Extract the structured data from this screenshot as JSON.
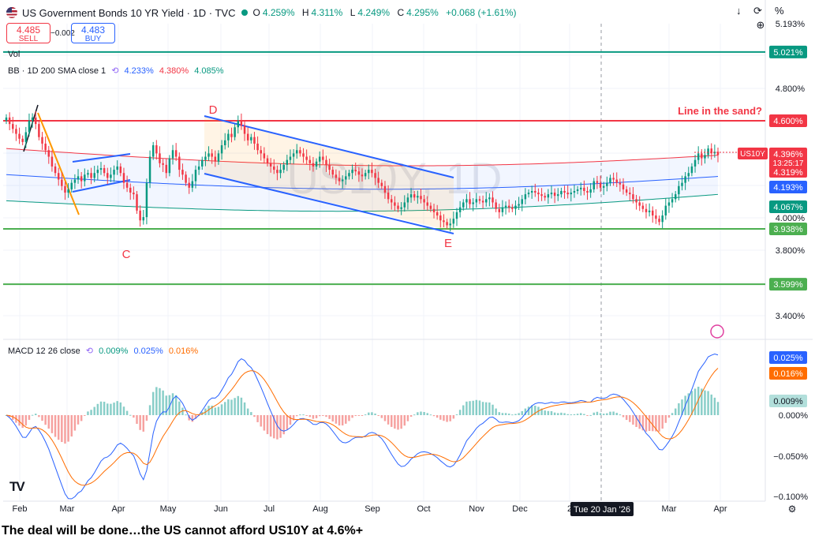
{
  "header": {
    "title": "US Government Bonds 10 YR Yield · 1D · TVC",
    "open_label": "O",
    "open": "4.259%",
    "high_label": "H",
    "high": "4.311%",
    "low_label": "L",
    "low": "4.249%",
    "close_label": "C",
    "close": "4.295%",
    "change": "+0.068 (+1.61%)"
  },
  "trade": {
    "sell_price": "4.485",
    "sell_label": "SELL",
    "spread": "−0.002",
    "buy_price": "4.483",
    "buy_label": "BUY"
  },
  "top_right_percent": "%",
  "vol_label": "Vol",
  "bb_legend": {
    "label": "BB · 1D 200 SMA close 1",
    "basis": "4.233%",
    "upper": "4.380%",
    "lower": "4.085%"
  },
  "macd_legend": {
    "label": "MACD 12 26 close",
    "hist": "0.009%",
    "macd": "0.025%",
    "signal": "0.016%"
  },
  "caption": "The deal will be done…the US cannot afford US10Y at 4.6%+",
  "colors": {
    "up": "#089981",
    "down": "#f23645",
    "macd": "#2962ff",
    "signal": "#ff6d00",
    "bb_basis": "#2962ff",
    "bb_upper": "#f23645",
    "bb_lower": "#089981",
    "level_red": "#f23645",
    "level_green": "#4caf50",
    "channel": "#2962ff",
    "wedge": "#ff9800"
  },
  "chart_data": {
    "type": "candlestick",
    "symbol": "US10Y",
    "watermark": "US10Y, 1D",
    "x_ticks": [
      "Feb",
      "Mar",
      "Apr",
      "May",
      "Jun",
      "Jul",
      "Aug",
      "Sep",
      "Oct",
      "Nov",
      "Dec",
      "2",
      "Mar",
      "Apr"
    ],
    "crosshair_date": "Tue 20 Jan '26",
    "price_ticks": [
      "4.800%",
      "4.000%",
      "3.800%",
      "3.400%"
    ],
    "hidden_tick": "5.193%",
    "price_range": [
      3.3,
      5.25
    ],
    "horizontal_levels": [
      {
        "value": 5.021,
        "label": "5.021%",
        "color": "#089981"
      },
      {
        "value": 4.6,
        "label": "4.600%",
        "color": "#f23645",
        "annotation": "Line in the sand?"
      },
      {
        "value": 3.938,
        "label": "3.938%",
        "color": "#4caf50"
      },
      {
        "value": 3.599,
        "label": "3.599%",
        "color": "#4caf50"
      }
    ],
    "price_labels": [
      {
        "label": "US10Y",
        "value": "4.396%",
        "countdown": "13:25:17",
        "color": "#f23645"
      },
      {
        "value": "4.319%",
        "color": "#f23645"
      },
      {
        "value": "4.193%",
        "color": "#2962ff"
      },
      {
        "value": "4.067%",
        "color": "#089981"
      }
    ],
    "annotations": [
      "D",
      "C",
      "E"
    ],
    "close_series": [
      4.62,
      4.58,
      4.55,
      4.52,
      4.49,
      4.47,
      4.53,
      4.6,
      4.62,
      4.58,
      4.5,
      4.46,
      4.42,
      4.38,
      4.32,
      4.28,
      4.24,
      4.2,
      4.16,
      4.18,
      4.22,
      4.24,
      4.26,
      4.23,
      4.27,
      4.28,
      4.25,
      4.28,
      4.3,
      4.31,
      4.28,
      4.25,
      4.27,
      4.3,
      4.32,
      4.28,
      4.22,
      4.19,
      4.16,
      4.15,
      4.05,
      3.99,
      4.01,
      4.22,
      4.38,
      4.45,
      4.4,
      4.34,
      4.33,
      4.28,
      4.37,
      4.42,
      4.38,
      4.3,
      4.27,
      4.22,
      4.19,
      4.23,
      4.3,
      4.32,
      4.36,
      4.38,
      4.4,
      4.38,
      4.35,
      4.4,
      4.45,
      4.48,
      4.52,
      4.5,
      4.56,
      4.6,
      4.57,
      4.52,
      4.48,
      4.5,
      4.46,
      4.42,
      4.4,
      4.37,
      4.34,
      4.32,
      4.3,
      4.28,
      4.3,
      4.33,
      4.36,
      4.38,
      4.4,
      4.42,
      4.4,
      4.38,
      4.36,
      4.34,
      4.32,
      4.35,
      4.38,
      4.36,
      4.33,
      4.3,
      4.27,
      4.25,
      4.23,
      4.24,
      4.26,
      4.28,
      4.3,
      4.29,
      4.27,
      4.26,
      4.28,
      4.3,
      4.28,
      4.25,
      4.22,
      4.2,
      4.16,
      4.12,
      4.1,
      4.08,
      4.06,
      4.07,
      4.1,
      4.13,
      4.15,
      4.13,
      4.14,
      4.12,
      4.1,
      4.08,
      4.06,
      4.04,
      4.02,
      3.99,
      3.98,
      3.96,
      3.97,
      4.0,
      4.04,
      4.07,
      4.1,
      4.12,
      4.09,
      4.1,
      4.12,
      4.11,
      4.1,
      4.12,
      4.13,
      4.1,
      4.06,
      4.04,
      4.07,
      4.08,
      4.07,
      4.06,
      4.08,
      4.09,
      4.12,
      4.15,
      4.16,
      4.17,
      4.16,
      4.15,
      4.14,
      4.13,
      4.15,
      4.16,
      4.14,
      4.15,
      4.17,
      4.16,
      4.15,
      4.16,
      4.17,
      4.18,
      4.19,
      4.17,
      4.16,
      4.18,
      4.23,
      4.22,
      4.19,
      4.2,
      4.22,
      4.25,
      4.24,
      4.22,
      4.21,
      4.18,
      4.16,
      4.15,
      4.12,
      4.1,
      4.08,
      4.06,
      4.04,
      4.05,
      4.02,
      4.0,
      3.98,
      4.02,
      4.08,
      4.1,
      4.12,
      4.15,
      4.2,
      4.22,
      4.26,
      4.28,
      4.32,
      4.36,
      4.4,
      4.37,
      4.39,
      4.43,
      4.4,
      4.41,
      4.39
    ]
  }
}
